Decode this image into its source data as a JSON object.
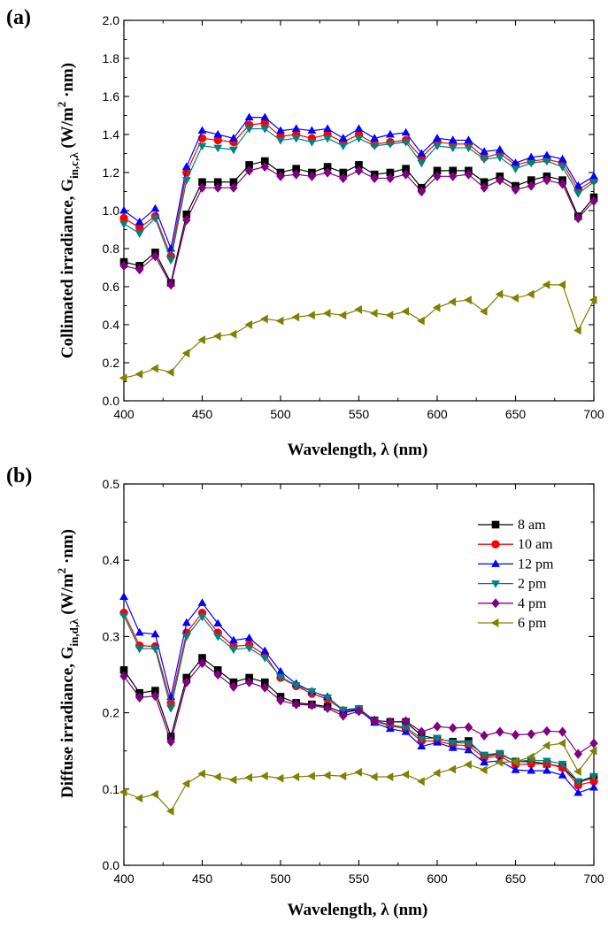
{
  "chart_data": [
    {
      "type": "line",
      "panel_label": "(a)",
      "xlabel": "Wavelength, λ (nm)",
      "ylabel": {
        "main": "Collimated irradiance, G",
        "subscript": "in,c,λ",
        "unit_open": " (W/m",
        "unit_sup": "2",
        "unit_close": " ·nm)"
      },
      "xlim": [
        400,
        700
      ],
      "ylim": [
        0.0,
        2.0
      ],
      "xticks": [
        400,
        450,
        500,
        550,
        600,
        650,
        700
      ],
      "xtick_labels": [
        "400",
        "450",
        "500",
        "550",
        "600",
        "650",
        "700"
      ],
      "yticks": [
        0.0,
        0.2,
        0.4,
        0.6,
        0.8,
        1.0,
        1.2,
        1.4,
        1.6,
        1.8,
        2.0
      ],
      "ytick_labels": [
        "0.0",
        "0.2",
        "0.4",
        "0.6",
        "0.8",
        "1.0",
        "1.2",
        "1.4",
        "1.6",
        "1.8",
        "2.0"
      ],
      "legend": false,
      "x": [
        400,
        410,
        420,
        430,
        440,
        450,
        460,
        470,
        480,
        490,
        500,
        510,
        520,
        530,
        540,
        550,
        560,
        570,
        580,
        590,
        600,
        610,
        620,
        630,
        640,
        650,
        660,
        670,
        680,
        690,
        700
      ],
      "series": [
        {
          "name": "8 am",
          "color": "#000000",
          "marker": "square",
          "values": [
            0.73,
            0.71,
            0.78,
            0.62,
            0.98,
            1.15,
            1.15,
            1.15,
            1.24,
            1.26,
            1.2,
            1.22,
            1.2,
            1.23,
            1.2,
            1.24,
            1.19,
            1.2,
            1.22,
            1.12,
            1.21,
            1.21,
            1.21,
            1.15,
            1.18,
            1.13,
            1.16,
            1.18,
            1.16,
            0.97,
            1.07
          ]
        },
        {
          "name": "10 am",
          "color": "#ff0000",
          "marker": "circle",
          "values": [
            0.96,
            0.91,
            0.97,
            0.76,
            1.2,
            1.38,
            1.37,
            1.36,
            1.45,
            1.46,
            1.39,
            1.4,
            1.38,
            1.4,
            1.36,
            1.4,
            1.35,
            1.36,
            1.37,
            1.28,
            1.36,
            1.35,
            1.35,
            1.28,
            1.3,
            1.24,
            1.26,
            1.27,
            1.25,
            1.11,
            1.16
          ]
        },
        {
          "name": "12 pm",
          "color": "#0000ff",
          "marker": "triangle-up",
          "values": [
            1.0,
            0.94,
            1.01,
            0.8,
            1.23,
            1.42,
            1.4,
            1.38,
            1.49,
            1.49,
            1.42,
            1.43,
            1.42,
            1.43,
            1.38,
            1.43,
            1.38,
            1.4,
            1.41,
            1.3,
            1.38,
            1.37,
            1.37,
            1.31,
            1.32,
            1.25,
            1.28,
            1.29,
            1.27,
            1.13,
            1.18
          ]
        },
        {
          "name": "2 pm",
          "color": "#008080",
          "marker": "triangle-down",
          "values": [
            0.93,
            0.88,
            0.96,
            0.74,
            1.16,
            1.34,
            1.33,
            1.32,
            1.43,
            1.43,
            1.37,
            1.38,
            1.36,
            1.38,
            1.34,
            1.38,
            1.34,
            1.35,
            1.36,
            1.25,
            1.34,
            1.33,
            1.33,
            1.27,
            1.28,
            1.22,
            1.25,
            1.26,
            1.23,
            1.09,
            1.15
          ]
        },
        {
          "name": "4 pm",
          "color": "#800080",
          "marker": "diamond",
          "values": [
            0.71,
            0.69,
            0.76,
            0.61,
            0.95,
            1.12,
            1.12,
            1.12,
            1.21,
            1.23,
            1.18,
            1.19,
            1.18,
            1.2,
            1.17,
            1.21,
            1.17,
            1.17,
            1.19,
            1.1,
            1.18,
            1.18,
            1.19,
            1.12,
            1.16,
            1.11,
            1.13,
            1.16,
            1.14,
            0.96,
            1.05
          ]
        },
        {
          "name": "6 pm",
          "color": "#808000",
          "marker": "triangle-left",
          "values": [
            0.12,
            0.14,
            0.17,
            0.15,
            0.25,
            0.32,
            0.34,
            0.35,
            0.4,
            0.43,
            0.42,
            0.44,
            0.45,
            0.46,
            0.45,
            0.48,
            0.46,
            0.45,
            0.47,
            0.42,
            0.49,
            0.52,
            0.53,
            0.47,
            0.56,
            0.54,
            0.56,
            0.61,
            0.61,
            0.37,
            0.53
          ]
        }
      ]
    },
    {
      "type": "line",
      "panel_label": "(b)",
      "xlabel": "Wavelength, λ (nm)",
      "ylabel": {
        "main": "Diffuse irradiance, G",
        "subscript": "in,d,λ",
        "unit_open": " (W/m",
        "unit_sup": "2",
        "unit_close": " ·nm)"
      },
      "xlim": [
        400,
        700
      ],
      "ylim": [
        0.0,
        0.5
      ],
      "xticks": [
        400,
        450,
        500,
        550,
        600,
        650,
        700
      ],
      "xtick_labels": [
        "400",
        "450",
        "500",
        "550",
        "600",
        "650",
        "700"
      ],
      "yticks": [
        0.0,
        0.1,
        0.2,
        0.3,
        0.4,
        0.5
      ],
      "ytick_labels": [
        "0.0",
        "0.1",
        "0.2",
        "0.3",
        "0.4",
        "0.5"
      ],
      "legend": "top-right",
      "x": [
        400,
        410,
        420,
        430,
        440,
        450,
        460,
        470,
        480,
        490,
        500,
        510,
        520,
        530,
        540,
        550,
        560,
        570,
        580,
        590,
        600,
        610,
        620,
        630,
        640,
        650,
        660,
        670,
        680,
        690,
        700
      ],
      "series": [
        {
          "name": "8 am",
          "color": "#000000",
          "marker": "square",
          "values": [
            0.256,
            0.226,
            0.229,
            0.169,
            0.246,
            0.272,
            0.256,
            0.24,
            0.246,
            0.24,
            0.221,
            0.213,
            0.211,
            0.208,
            0.2,
            0.204,
            0.19,
            0.188,
            0.188,
            0.17,
            0.166,
            0.162,
            0.163,
            0.143,
            0.146,
            0.136,
            0.136,
            0.133,
            0.129,
            0.109,
            0.115
          ]
        },
        {
          "name": "10 am",
          "color": "#ff0000",
          "marker": "circle",
          "values": [
            0.331,
            0.288,
            0.287,
            0.213,
            0.305,
            0.331,
            0.305,
            0.287,
            0.289,
            0.276,
            0.246,
            0.235,
            0.225,
            0.218,
            0.203,
            0.205,
            0.189,
            0.183,
            0.179,
            0.163,
            0.163,
            0.158,
            0.157,
            0.141,
            0.143,
            0.132,
            0.133,
            0.133,
            0.128,
            0.105,
            0.11
          ]
        },
        {
          "name": "12 pm",
          "color": "#0000ff",
          "marker": "triangle-up",
          "values": [
            0.352,
            0.305,
            0.303,
            0.221,
            0.318,
            0.344,
            0.317,
            0.295,
            0.298,
            0.281,
            0.254,
            0.238,
            0.228,
            0.221,
            0.203,
            0.204,
            0.187,
            0.179,
            0.175,
            0.156,
            0.161,
            0.154,
            0.151,
            0.135,
            0.137,
            0.125,
            0.124,
            0.124,
            0.118,
            0.095,
            0.102
          ]
        },
        {
          "name": "2 pm",
          "color": "#008080",
          "marker": "triangle-down",
          "values": [
            0.327,
            0.284,
            0.284,
            0.206,
            0.3,
            0.326,
            0.3,
            0.283,
            0.285,
            0.272,
            0.247,
            0.236,
            0.228,
            0.22,
            0.204,
            0.206,
            0.19,
            0.184,
            0.181,
            0.166,
            0.167,
            0.161,
            0.16,
            0.145,
            0.147,
            0.136,
            0.138,
            0.137,
            0.133,
            0.11,
            0.117
          ]
        },
        {
          "name": "4 pm",
          "color": "#800080",
          "marker": "diamond",
          "values": [
            0.248,
            0.22,
            0.222,
            0.162,
            0.24,
            0.265,
            0.25,
            0.234,
            0.24,
            0.233,
            0.216,
            0.211,
            0.21,
            0.206,
            0.196,
            0.202,
            0.19,
            0.188,
            0.189,
            0.175,
            0.182,
            0.18,
            0.181,
            0.17,
            0.175,
            0.171,
            0.172,
            0.176,
            0.175,
            0.146,
            0.16
          ]
        },
        {
          "name": "6 pm",
          "color": "#808000",
          "marker": "triangle-left",
          "values": [
            0.096,
            0.088,
            0.093,
            0.071,
            0.107,
            0.12,
            0.116,
            0.112,
            0.115,
            0.117,
            0.114,
            0.116,
            0.117,
            0.118,
            0.117,
            0.122,
            0.116,
            0.116,
            0.119,
            0.11,
            0.121,
            0.126,
            0.132,
            0.125,
            0.135,
            0.136,
            0.142,
            0.157,
            0.16,
            0.123,
            0.15
          ]
        }
      ]
    }
  ]
}
